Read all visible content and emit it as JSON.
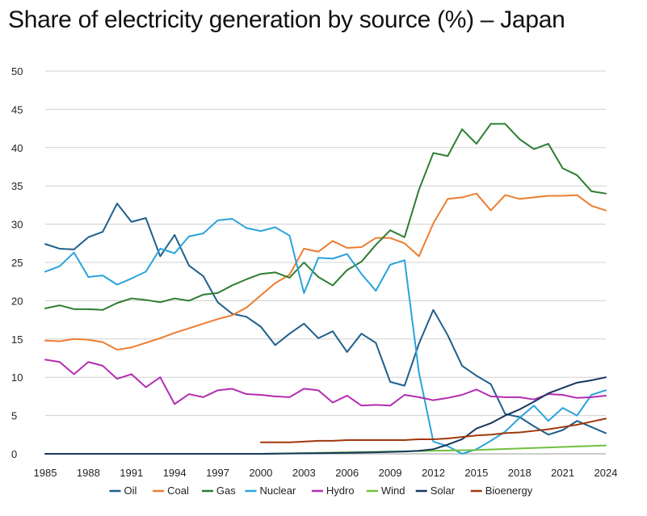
{
  "chart_data": {
    "type": "line",
    "title": "Share of electricity generation by source (%) – Japan",
    "xlabel": "",
    "ylabel": "",
    "ylim": [
      0,
      50
    ],
    "yticks": [
      0,
      5,
      10,
      15,
      20,
      25,
      30,
      35,
      40,
      45,
      50
    ],
    "xlim": [
      1985,
      2024
    ],
    "xticks": [
      1985,
      1988,
      1991,
      1994,
      1997,
      2000,
      2003,
      2006,
      2009,
      2012,
      2015,
      2018,
      2021,
      2024
    ],
    "grid": "horizontal",
    "legend_position": "bottom",
    "series": [
      {
        "name": "Oil",
        "color": "#1f5f8b",
        "x": [
          1985,
          1986,
          1987,
          1988,
          1989,
          1990,
          1991,
          1992,
          1993,
          1994,
          1995,
          1996,
          1997,
          1998,
          1999,
          2000,
          2001,
          2002,
          2003,
          2004,
          2005,
          2006,
          2007,
          2008,
          2009,
          2010,
          2011,
          2012,
          2013,
          2014,
          2015,
          2016,
          2017,
          2018,
          2019,
          2020,
          2021,
          2022,
          2023,
          2024
        ],
        "values": [
          27.4,
          26.8,
          26.7,
          28.3,
          29.0,
          32.7,
          30.3,
          30.8,
          25.8,
          28.6,
          24.6,
          23.2,
          19.8,
          18.3,
          17.9,
          16.6,
          14.2,
          15.7,
          17.0,
          15.1,
          16.0,
          13.3,
          15.7,
          14.5,
          9.4,
          8.9,
          14.4,
          18.8,
          15.5,
          11.5,
          10.2,
          9.1,
          5.2,
          4.8,
          3.6,
          2.5,
          3.1,
          4.3,
          3.5,
          2.7
        ]
      },
      {
        "name": "Coal",
        "color": "#ed7d31",
        "x": [
          1985,
          1986,
          1987,
          1988,
          1989,
          1990,
          1991,
          1992,
          1993,
          1994,
          1995,
          1996,
          1997,
          1998,
          1999,
          2000,
          2001,
          2002,
          2003,
          2004,
          2005,
          2006,
          2007,
          2008,
          2009,
          2010,
          2011,
          2012,
          2013,
          2014,
          2015,
          2016,
          2017,
          2018,
          2019,
          2020,
          2021,
          2022,
          2023,
          2024
        ],
        "values": [
          14.8,
          14.7,
          15.0,
          14.9,
          14.6,
          13.6,
          13.9,
          14.5,
          15.1,
          15.8,
          16.4,
          17.0,
          17.6,
          18.1,
          19.1,
          20.7,
          22.3,
          23.4,
          26.8,
          26.4,
          27.8,
          26.9,
          27.0,
          28.2,
          28.2,
          27.5,
          25.8,
          30.1,
          33.3,
          33.5,
          34.0,
          31.8,
          33.8,
          33.3,
          33.5,
          33.7,
          33.7,
          33.8,
          32.4,
          31.8
        ]
      },
      {
        "name": "Gas",
        "color": "#2e7d32",
        "x": [
          1985,
          1986,
          1987,
          1988,
          1989,
          1990,
          1991,
          1992,
          1993,
          1994,
          1995,
          1996,
          1997,
          1998,
          1999,
          2000,
          2001,
          2002,
          2003,
          2004,
          2005,
          2006,
          2007,
          2008,
          2009,
          2010,
          2011,
          2012,
          2013,
          2014,
          2015,
          2016,
          2017,
          2018,
          2019,
          2020,
          2021,
          2022,
          2023,
          2024
        ],
        "values": [
          19.0,
          19.4,
          18.9,
          18.9,
          18.8,
          19.7,
          20.3,
          20.1,
          19.8,
          20.3,
          20.0,
          20.8,
          21.0,
          22.0,
          22.8,
          23.5,
          23.7,
          23.0,
          25.0,
          23.1,
          22.0,
          24.0,
          25.1,
          27.3,
          29.2,
          28.3,
          34.5,
          39.3,
          38.9,
          42.4,
          40.5,
          43.1,
          43.1,
          41.1,
          39.8,
          40.5,
          37.3,
          36.4,
          34.3,
          34.0
        ]
      },
      {
        "name": "Nuclear",
        "color": "#29a3dc",
        "x": [
          1985,
          1986,
          1987,
          1988,
          1989,
          1990,
          1991,
          1992,
          1993,
          1994,
          1995,
          1996,
          1997,
          1998,
          1999,
          2000,
          2001,
          2002,
          2003,
          2004,
          2005,
          2006,
          2007,
          2008,
          2009,
          2010,
          2011,
          2012,
          2013,
          2014,
          2015,
          2016,
          2017,
          2018,
          2019,
          2020,
          2021,
          2022,
          2023,
          2024
        ],
        "values": [
          23.8,
          24.5,
          26.3,
          23.1,
          23.3,
          22.1,
          22.9,
          23.8,
          26.8,
          26.2,
          28.4,
          28.8,
          30.5,
          30.7,
          29.5,
          29.1,
          29.6,
          28.5,
          21.0,
          25.6,
          25.5,
          26.1,
          23.5,
          21.3,
          24.7,
          25.3,
          10.6,
          1.6,
          1.0,
          0.0,
          0.6,
          1.7,
          2.9,
          4.7,
          6.3,
          4.3,
          6.0,
          5.0,
          7.7,
          8.3
        ]
      },
      {
        "name": "Hydro",
        "color": "#b32db3",
        "x": [
          1985,
          1986,
          1987,
          1988,
          1989,
          1990,
          1991,
          1992,
          1993,
          1994,
          1995,
          1996,
          1997,
          1998,
          1999,
          2000,
          2001,
          2002,
          2003,
          2004,
          2005,
          2006,
          2007,
          2008,
          2009,
          2010,
          2011,
          2012,
          2013,
          2014,
          2015,
          2016,
          2017,
          2018,
          2019,
          2020,
          2021,
          2022,
          2023,
          2024
        ],
        "values": [
          12.3,
          12.0,
          10.4,
          12.0,
          11.5,
          9.8,
          10.4,
          8.7,
          10.0,
          6.5,
          7.8,
          7.4,
          8.3,
          8.5,
          7.8,
          7.7,
          7.5,
          7.4,
          8.5,
          8.3,
          6.7,
          7.6,
          6.3,
          6.4,
          6.3,
          7.7,
          7.4,
          7.0,
          7.3,
          7.7,
          8.4,
          7.5,
          7.4,
          7.4,
          7.1,
          7.8,
          7.7,
          7.3,
          7.4,
          7.6
        ]
      },
      {
        "name": "Wind",
        "color": "#70c040",
        "x": [
          2000,
          2003,
          2006,
          2009,
          2012,
          2015,
          2018,
          2021,
          2024
        ],
        "values": [
          0.0,
          0.1,
          0.2,
          0.3,
          0.4,
          0.5,
          0.7,
          0.9,
          1.1
        ]
      },
      {
        "name": "Solar",
        "color": "#17375e",
        "x": [
          1985,
          1995,
          2000,
          2005,
          2008,
          2010,
          2011,
          2012,
          2013,
          2014,
          2015,
          2016,
          2017,
          2018,
          2019,
          2020,
          2021,
          2022,
          2023,
          2024
        ],
        "values": [
          0.0,
          0.0,
          0.0,
          0.1,
          0.2,
          0.3,
          0.4,
          0.6,
          1.2,
          1.9,
          3.3,
          4.0,
          5.0,
          5.8,
          6.8,
          7.9,
          8.6,
          9.3,
          9.6,
          10.0
        ]
      },
      {
        "name": "Bioenergy",
        "color": "#a0380c",
        "x": [
          2000,
          2001,
          2002,
          2003,
          2004,
          2005,
          2006,
          2007,
          2008,
          2009,
          2010,
          2011,
          2012,
          2013,
          2014,
          2015,
          2016,
          2017,
          2018,
          2019,
          2020,
          2021,
          2022,
          2023,
          2024
        ],
        "values": [
          1.5,
          1.5,
          1.5,
          1.6,
          1.7,
          1.7,
          1.8,
          1.8,
          1.8,
          1.8,
          1.8,
          1.9,
          1.9,
          2.0,
          2.2,
          2.4,
          2.5,
          2.7,
          2.8,
          3.0,
          3.2,
          3.5,
          3.8,
          4.2,
          4.6
        ]
      }
    ]
  }
}
